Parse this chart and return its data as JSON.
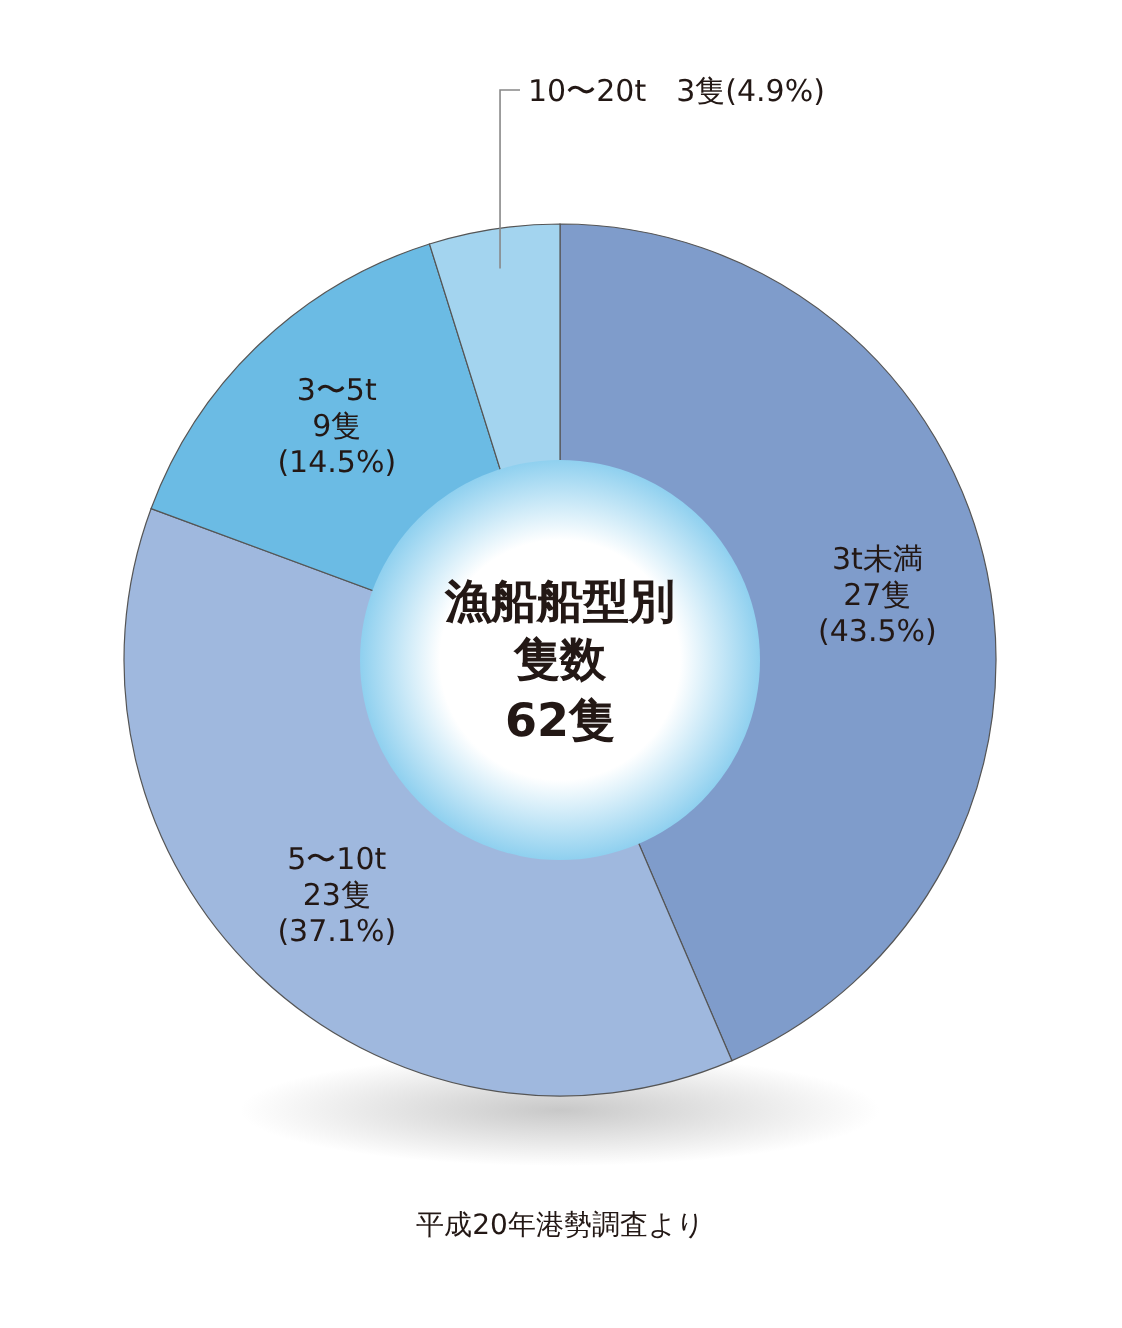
{
  "chart_data": {
    "type": "pie",
    "title": "漁船船型別隻数",
    "subtitle": "62隻",
    "categories": [
      "3t未満",
      "5〜10t",
      "3〜5t",
      "10〜20t"
    ],
    "values": [
      27,
      23,
      9,
      3
    ],
    "value_labels": [
      "27隻 (43.5%)",
      "23隻 (37.1%)",
      "9隻 (14.5%)",
      "3隻(4.9%)"
    ],
    "colors": [
      "#7f9ccb",
      "#9fb8de",
      "#6bbbe4",
      "#a3d4ef"
    ],
    "annotations": [
      "平成20年港勢調査より"
    ]
  }
}
